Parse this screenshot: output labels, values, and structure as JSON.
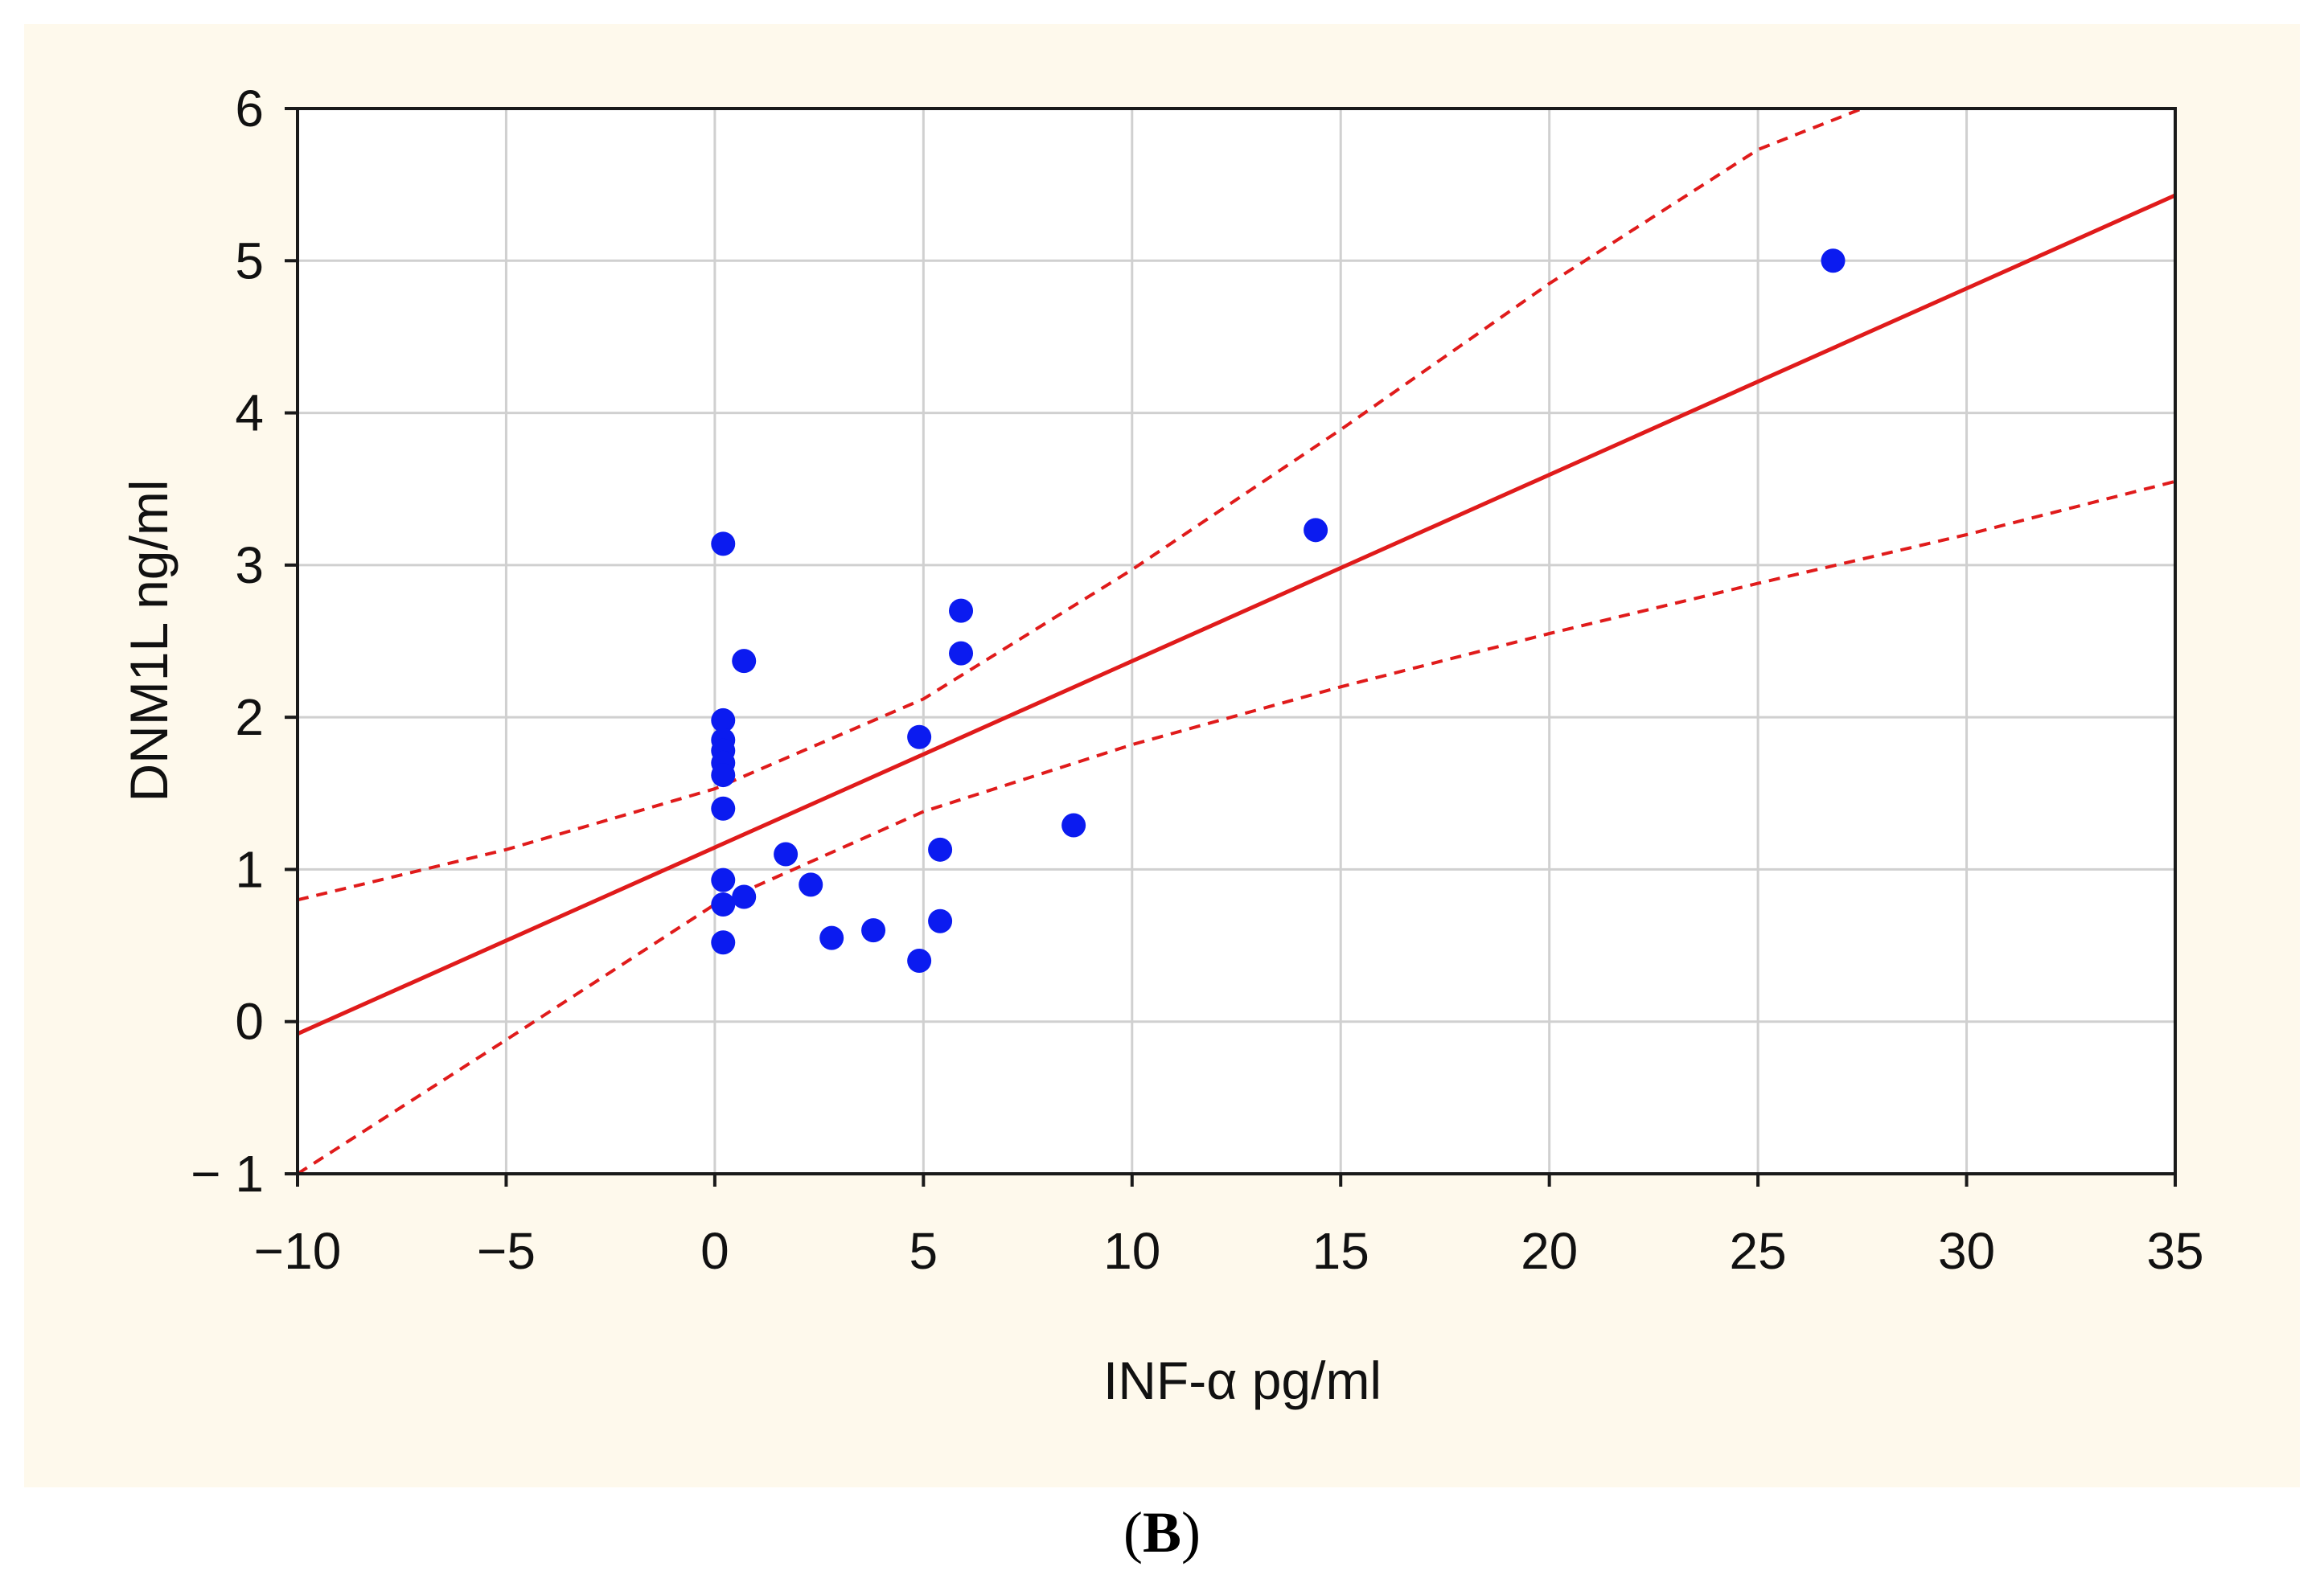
{
  "colors": {
    "panel_background": "#FEF9EC",
    "plot_background": "#FFFFFF",
    "grid": "#D0D0D0",
    "axis": "#1A1A1A",
    "points": "#0B1BF0",
    "fit_line": "#E01B1B",
    "confidence_band": "#E01B1B"
  },
  "panel_label": {
    "open": "(",
    "letter": "B",
    "close": ")"
  },
  "chart_data": {
    "type": "scatter",
    "title": "",
    "xlabel": "INF-α pg/ml",
    "ylabel": "DNM1L ng/ml",
    "xlim": [
      -10,
      35
    ],
    "ylim": [
      -1,
      6
    ],
    "xticks": [
      -10,
      -5,
      0,
      5,
      10,
      15,
      20,
      25,
      30,
      35
    ],
    "yticks": [
      -1,
      0,
      1,
      2,
      3,
      4,
      5,
      6
    ],
    "xtick_labels": [
      "−10",
      "−5",
      "0",
      "5",
      "10",
      "15",
      "20",
      "25",
      "30",
      "35"
    ],
    "ytick_labels": [
      "− 1",
      "0",
      "1",
      "2",
      "3",
      "4",
      "5",
      "6"
    ],
    "grid": true,
    "points": [
      {
        "x": 0.2,
        "y": 3.14
      },
      {
        "x": 0.2,
        "y": 1.98
      },
      {
        "x": 0.2,
        "y": 1.85
      },
      {
        "x": 0.2,
        "y": 1.78
      },
      {
        "x": 0.2,
        "y": 1.7
      },
      {
        "x": 0.2,
        "y": 1.62
      },
      {
        "x": 0.2,
        "y": 1.4
      },
      {
        "x": 0.2,
        "y": 0.93
      },
      {
        "x": 0.2,
        "y": 0.77
      },
      {
        "x": 0.2,
        "y": 0.52
      },
      {
        "x": 0.7,
        "y": 2.37
      },
      {
        "x": 0.7,
        "y": 0.82
      },
      {
        "x": 1.7,
        "y": 1.1
      },
      {
        "x": 2.3,
        "y": 0.9
      },
      {
        "x": 2.8,
        "y": 0.55
      },
      {
        "x": 3.8,
        "y": 0.6
      },
      {
        "x": 4.9,
        "y": 1.87
      },
      {
        "x": 4.9,
        "y": 0.4
      },
      {
        "x": 5.4,
        "y": 1.13
      },
      {
        "x": 5.4,
        "y": 0.66
      },
      {
        "x": 5.9,
        "y": 2.7
      },
      {
        "x": 5.9,
        "y": 2.42
      },
      {
        "x": 8.6,
        "y": 1.29
      },
      {
        "x": 14.4,
        "y": 3.23
      },
      {
        "x": 26.8,
        "y": 5.0
      }
    ],
    "regression": {
      "x": [
        -10,
        35
      ],
      "y": [
        -0.08,
        5.43
      ]
    },
    "confidence_band": {
      "upper": {
        "x": [
          -10,
          -5,
          0,
          5,
          10,
          15,
          20,
          25,
          27.5
        ],
        "y": [
          0.8,
          1.13,
          1.53,
          2.12,
          2.97,
          3.89,
          4.85,
          5.73,
          6.0
        ]
      },
      "lower": {
        "x": [
          -10,
          -5,
          0,
          5,
          10,
          15,
          20,
          25,
          30,
          35
        ],
        "y": [
          -1.0,
          -0.12,
          0.77,
          1.38,
          1.82,
          2.2,
          2.55,
          2.88,
          3.2,
          3.55
        ]
      }
    }
  }
}
